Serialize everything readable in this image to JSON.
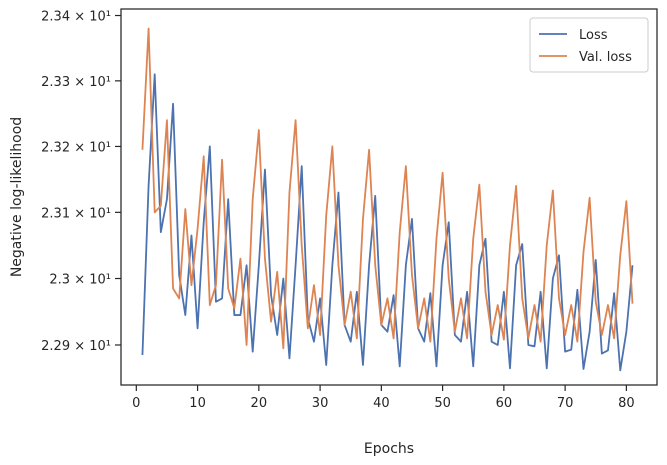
{
  "chart_data": {
    "type": "line",
    "xlabel": "Epochs",
    "ylabel": "Negative log-likelihood",
    "y_scale": "log",
    "xlim": [
      -2.5,
      85
    ],
    "ylim": [
      22.84,
      23.41
    ],
    "x_ticks": [
      0,
      10,
      20,
      30,
      40,
      50,
      60,
      70,
      80
    ],
    "y_ticks": [
      {
        "value": 22.9,
        "label": "2.29 × 10¹"
      },
      {
        "value": 23.0,
        "label": "2.3 × 10¹"
      },
      {
        "value": 23.1,
        "label": "2.31 × 10¹"
      },
      {
        "value": 23.2,
        "label": "2.32 × 10¹"
      },
      {
        "value": 23.3,
        "label": "2.33 × 10¹"
      },
      {
        "value": 23.4,
        "label": "2.34 × 10¹"
      }
    ],
    "grid": false,
    "legend_position": "top-right",
    "x": [
      1,
      2,
      3,
      4,
      5,
      6,
      7,
      8,
      9,
      10,
      11,
      12,
      13,
      14,
      15,
      16,
      17,
      18,
      19,
      20,
      21,
      22,
      23,
      24,
      25,
      26,
      27,
      28,
      29,
      30,
      31,
      32,
      33,
      34,
      35,
      36,
      37,
      38,
      39,
      40,
      41,
      42,
      43,
      44,
      45,
      46,
      47,
      48,
      49,
      50,
      51,
      52,
      53,
      54,
      55,
      56,
      57,
      58,
      59,
      60,
      61,
      62,
      63,
      64,
      65,
      66,
      67,
      68,
      69,
      70,
      71,
      72,
      73,
      74,
      75,
      76,
      77,
      78,
      79,
      80,
      81
    ],
    "series": [
      {
        "name": "Loss",
        "color": "#4c72b0",
        "values": [
          22.885,
          23.14,
          23.31,
          23.07,
          23.12,
          23.265,
          23.005,
          22.945,
          23.065,
          22.925,
          23.085,
          23.2,
          22.965,
          22.97,
          23.12,
          22.945,
          22.945,
          23.02,
          22.89,
          23.02,
          23.165,
          22.975,
          22.915,
          23.0,
          22.88,
          23.02,
          23.17,
          22.94,
          22.905,
          22.97,
          22.87,
          23.02,
          23.13,
          22.93,
          22.905,
          22.98,
          22.87,
          23.02,
          23.125,
          22.93,
          22.92,
          22.975,
          22.868,
          23.02,
          23.09,
          22.925,
          22.905,
          22.978,
          22.868,
          23.02,
          23.085,
          22.915,
          22.905,
          22.98,
          22.868,
          23.02,
          23.06,
          22.905,
          22.9,
          22.98,
          22.865,
          23.02,
          23.052,
          22.9,
          22.898,
          22.98,
          22.865,
          23.0,
          23.035,
          22.89,
          22.893,
          22.983,
          22.864,
          22.92,
          23.028,
          22.887,
          22.892,
          22.978,
          22.862,
          22.92,
          23.02
        ]
      },
      {
        "name": "Val. loss",
        "color": "#dd8452",
        "values": [
          23.195,
          23.38,
          23.1,
          23.11,
          23.24,
          22.985,
          22.97,
          23.105,
          22.99,
          23.075,
          23.185,
          22.96,
          22.99,
          23.18,
          22.985,
          22.955,
          23.03,
          22.9,
          23.12,
          23.225,
          23.03,
          22.935,
          23.01,
          22.895,
          23.13,
          23.24,
          23.05,
          22.925,
          22.99,
          22.915,
          23.095,
          23.2,
          23.02,
          22.93,
          22.98,
          22.91,
          23.09,
          23.195,
          23.02,
          22.93,
          22.97,
          22.91,
          23.07,
          23.17,
          23.005,
          22.925,
          22.97,
          22.905,
          23.06,
          23.16,
          23.0,
          22.92,
          22.97,
          22.91,
          23.06,
          23.142,
          22.98,
          22.915,
          22.96,
          22.908,
          23.05,
          23.14,
          22.97,
          22.91,
          22.96,
          22.905,
          23.05,
          23.133,
          22.97,
          22.915,
          22.96,
          22.905,
          23.04,
          23.122,
          22.965,
          22.915,
          22.96,
          22.91,
          23.035,
          23.117,
          22.962
        ]
      }
    ]
  }
}
